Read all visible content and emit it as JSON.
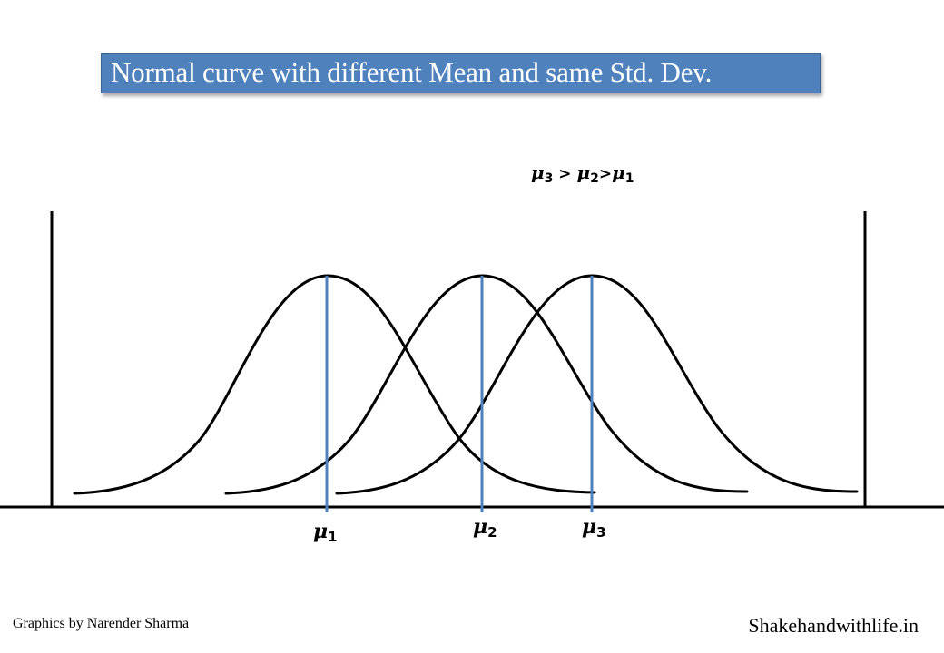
{
  "title": "Normal curve with different Mean and same  Std. Dev.",
  "relation": {
    "mu3": {
      "symbol": "μ",
      "sub": "3"
    },
    "gt1": " > ",
    "mu2": {
      "symbol": "μ",
      "sub": "2"
    },
    "gt2": ">",
    "mu1": {
      "symbol": "μ",
      "sub": "1"
    }
  },
  "means": [
    {
      "symbol": "μ",
      "sub": "1"
    },
    {
      "symbol": "μ",
      "sub": "2"
    },
    {
      "symbol": "μ",
      "sub": "3"
    }
  ],
  "footer": {
    "credit": "Graphics by Narender Sharma",
    "site": "Shakehandwithlife.in"
  },
  "colors": {
    "title_bg": "#4f81bd",
    "curve": "#000000",
    "mean_line": "#4f81bd"
  }
}
